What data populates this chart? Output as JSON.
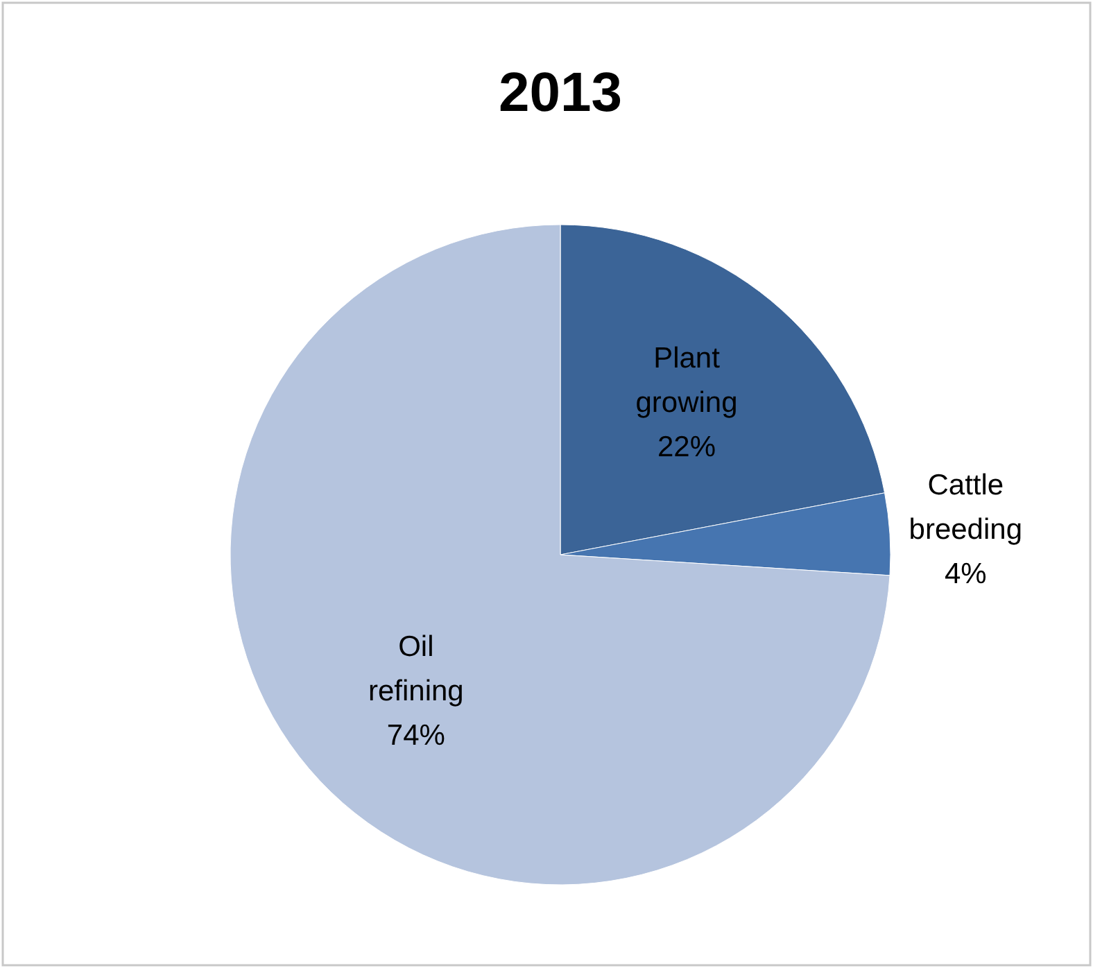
{
  "chart_data": {
    "type": "pie",
    "title": "2013",
    "categories": [
      "Plant growing",
      "Cattle breeding",
      "Oil refining"
    ],
    "values": [
      22,
      4,
      74
    ],
    "value_labels": [
      "22%",
      "4%",
      "74%"
    ],
    "colors": [
      "#3b6497",
      "#4675b0",
      "#b5c4de"
    ],
    "legend": false
  }
}
